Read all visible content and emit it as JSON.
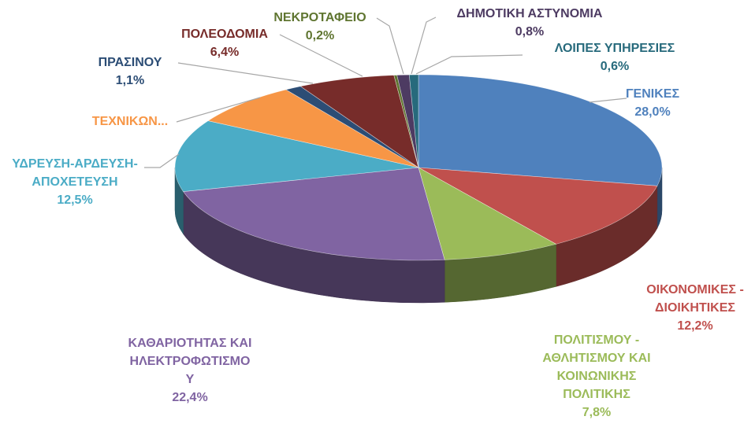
{
  "chart_data": {
    "type": "pie",
    "title": "",
    "slices": [
      {
        "label": "ΓΕΝΙΚΕΣ",
        "value": 28.0,
        "value_text": "28,0%",
        "color": "#4F81BD"
      },
      {
        "label": "ΟΙΚΟΝΟΜΙΚΕΣ - ΔΙΟΙΚΗΤΙΚΕΣ",
        "value": 12.2,
        "value_text": "12,2%",
        "color": "#C0504D"
      },
      {
        "label": "ΠΟΛΙΤΙΣΜΟΥ - ΑΘΛΗΤΙΣΜΟΥ ΚΑΙ ΚΟΙΝΩΝΙΚΗΣ ΠΟΛΙΤΙΚΗΣ",
        "value": 7.8,
        "value_text": "7,8%",
        "color": "#9BBB59"
      },
      {
        "label": "ΚΑΘΑΡΙΟΤΗΤΑΣ ΚΑΙ ΗΛΕΚΤΡΟΦΩΤΙΣΜΟΥ",
        "value": 22.4,
        "value_text": "22,4%",
        "color": "#8064A2"
      },
      {
        "label": "ΥΔΡΕΥΣΗ-ΑΡΔΕΥΣΗ-ΑΠΟΧΕΤΕΥΣΗ",
        "value": 12.5,
        "value_text": "12,5%",
        "color": "#4BACC6"
      },
      {
        "label": "ΤΕΧΝΙΚΩΝ...",
        "value": 7.4,
        "value_text": "",
        "color": "#F79646"
      },
      {
        "label": "ΠΡΑΣΙΝΟΥ",
        "value": 1.1,
        "value_text": "1,1%",
        "color": "#2C4D75"
      },
      {
        "label": "ΠΟΛΕΟΔΟΜΙΑ",
        "value": 6.4,
        "value_text": "6,4%",
        "color": "#772C2A"
      },
      {
        "label": "ΝΕΚΡΟΤΑΦΕΙΟ",
        "value": 0.2,
        "value_text": "0,2%",
        "color": "#5F7530"
      },
      {
        "label": "ΔΗΜΟΤΙΚΗ ΑΣΤΥΝΟΜΙΑ",
        "value": 0.8,
        "value_text": "0,8%",
        "color": "#4D3B62"
      },
      {
        "label": "ΛΟΙΠΕΣ ΥΠΗΡΕΣΙΕΣ",
        "value": 0.6,
        "value_text": "0,6%",
        "color": "#276A7C"
      }
    ],
    "label_lines": [
      [
        "ΓΕΝΙΚΕΣ",
        "28,0%"
      ],
      [
        "ΟΙΚΟΝΟΜΙΚΕΣ -",
        "ΔΙΟΙΚΗΤΙΚΕΣ",
        "12,2%"
      ],
      [
        "ΠΟΛΙΤΙΣΜΟΥ -",
        "ΑΘΛΗΤΙΣΜΟΥ ΚΑΙ",
        "ΚΟΙΝΩΝΙΚΗΣ",
        "ΠΟΛΙΤΙΚΗΣ",
        "7,8%"
      ],
      [
        "ΚΑΘΑΡΙΟΤΗΤΑΣ ΚΑΙ",
        "ΗΛΕΚΤΡΟΦΩΤΙΣΜΟ",
        "Υ",
        "22,4%"
      ],
      [
        "ΥΔΡΕΥΣΗ-ΑΡΔΕΥΣΗ-",
        "ΑΠΟΧΕΤΕΥΣΗ",
        "12,5%"
      ],
      [
        "ΤΕΧΝΙΚΩΝ..."
      ],
      [
        "ΠΡΑΣΙΝΟΥ",
        "1,1%"
      ],
      [
        "ΠΟΛΕΟΔΟΜΙΑ",
        "6,4%"
      ],
      [
        "ΝΕΚΡΟΤΑΦΕΙΟ",
        "0,2%"
      ],
      [
        "ΔΗΜΟΤΙΚΗ ΑΣΤΥΝΟΜΙΑ",
        "0,8%"
      ],
      [
        "ΛΟΙΠΕΣ ΥΠΗΡΕΣΙΕΣ",
        "0,6%"
      ]
    ],
    "style": "3d-pie",
    "legend": "none",
    "data_labels": "category-and-percent"
  }
}
